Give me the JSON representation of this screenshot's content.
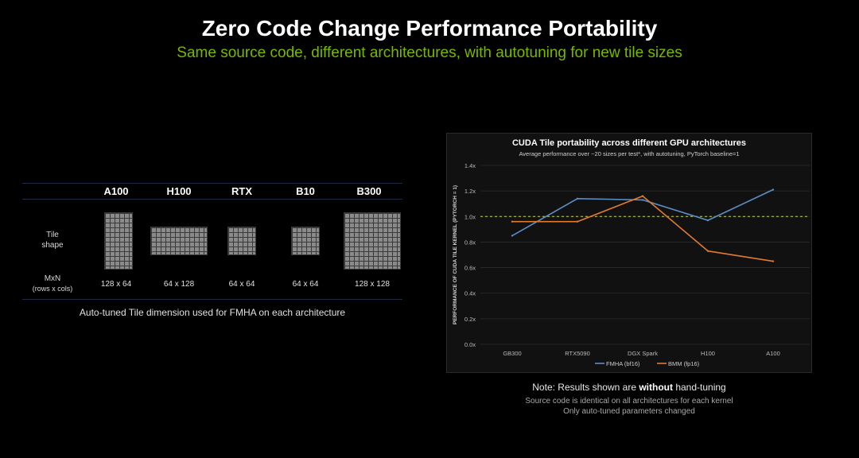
{
  "header": {
    "title": "Zero Code Change Performance Portability",
    "subtitle": "Same source code, different architectures, with autotuning for new tile sizes"
  },
  "tile_table": {
    "architectures": [
      "A100",
      "H100",
      "RTX",
      "B10",
      "B300"
    ],
    "row_labels": {
      "tile_shape_line1": "Tile",
      "tile_shape_line2": "shape",
      "mxn_line1": "MxN",
      "mxn_line2": "(rows x cols)"
    },
    "tiles": [
      {
        "m": 128,
        "n": 64
      },
      {
        "m": 64,
        "n": 128
      },
      {
        "m": 64,
        "n": 64
      },
      {
        "m": 64,
        "n": 64
      },
      {
        "m": 128,
        "n": 128
      }
    ],
    "mxn_values": [
      "128 x 64",
      "64 x 128",
      "64 x 64",
      "64 x 64",
      "128 x 128"
    ],
    "caption": "Auto-tuned Tile dimension used for FMHA on each architecture"
  },
  "chart_data": {
    "type": "line",
    "title": "CUDA Tile portability across different GPU architectures",
    "subtitle": "Average performance over ~20 sizes per test*, with autotuning, PyTorch baseline=1",
    "xlabel": "",
    "ylabel": "PERFORMANCE OF CUDA TILE KERNEL (PYTORCH = 1)",
    "categories": [
      "GB300",
      "RTX5090",
      "DGX Spark",
      "H100",
      "A100"
    ],
    "series": [
      {
        "name": "FMHA (bf16)",
        "color": "#5b8fc7",
        "values": [
          0.85,
          1.14,
          1.13,
          0.97,
          1.21
        ]
      },
      {
        "name": "BMM (fp16)",
        "color": "#e07b30",
        "values": [
          0.96,
          0.96,
          1.16,
          0.73,
          0.65
        ]
      }
    ],
    "ylim": [
      0,
      1.4
    ],
    "yticks": [
      0,
      0.2,
      0.4,
      0.6,
      0.8,
      1.0,
      1.2,
      1.4
    ],
    "ytick_labels": [
      "0.0x",
      "0.2x",
      "0.4x",
      "0.6x",
      "0.8x",
      "1.0x",
      "1.2x",
      "1.4x"
    ],
    "baseline": 1.0,
    "baseline_color": "#c8d45a",
    "legend": "bottom",
    "grid": true
  },
  "notes": {
    "note_prefix": "Note: Results shown are ",
    "note_bold": "without",
    "note_suffix": " hand-tuning",
    "line1": "Source code is identical on all architectures for each kernel",
    "line2": "Only auto-tuned parameters changed"
  }
}
